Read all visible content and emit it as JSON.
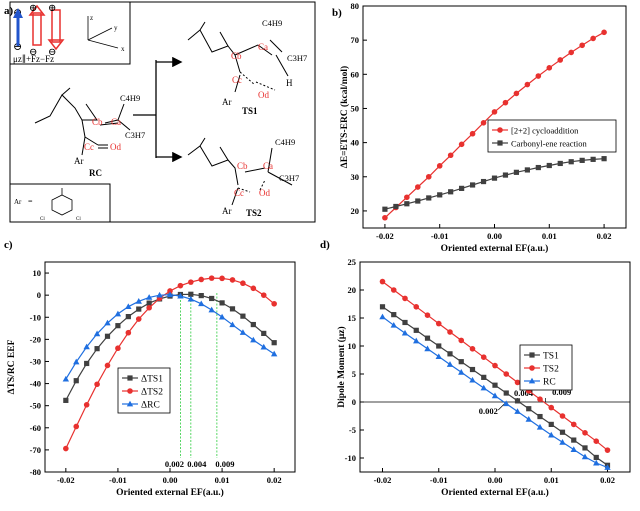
{
  "panel_labels": {
    "a": "a)",
    "b": "b)",
    "c": "c)",
    "d": "d)"
  },
  "scheme": {
    "field_labels": {
      "plus": "⊕",
      "minus": "⊖",
      "mu_expr": "μz∥+Fz−Fz",
      "axis_z": "z",
      "axis_y": "y",
      "axis_x": "x"
    },
    "rc": {
      "label": "RC",
      "c4h9": "C4H9",
      "ca": "Ca",
      "cb": "Cb",
      "cc": "Cc",
      "od": "Od",
      "ar": "Ar"
    },
    "ts1": {
      "label": "TS1",
      "c4h9": "C4H9",
      "c3h7": "C3H7",
      "ca": "Ca",
      "cb": "Cb",
      "cc": "Cc",
      "od": "Od",
      "h": "H",
      "ar": "Ar"
    },
    "ts2": {
      "label": "TS2",
      "c4h9": "C4H9",
      "c3h7": "C3H7",
      "ca": "Ca",
      "cb": "Cb",
      "cc": "Cc",
      "od": "Od",
      "ar": "Ar"
    },
    "ar_def": {
      "ar": "Ar",
      "eq": "=",
      "cl1": "Cl",
      "cl2": "Cl"
    }
  },
  "colors": {
    "red": "#e8312f",
    "dark": "#404040",
    "blue": "#1f6fe0",
    "green": "#2ecc40"
  },
  "chart_data": [
    {
      "id": "b",
      "type": "line",
      "xlabel": "Oriented external EF(a.u.)",
      "ylabel": "ΔE=ETS-ERC (kcal/mol)",
      "xlim": [
        -0.024,
        0.024
      ],
      "ylim": [
        15,
        80
      ],
      "xticks": [
        "-0.02",
        "-0.01",
        "0.00",
        "0.01",
        "0.02"
      ],
      "yticks": [
        "20",
        "30",
        "40",
        "50",
        "60",
        "70",
        "80"
      ],
      "x": [
        -0.02,
        -0.018,
        -0.016,
        -0.014,
        -0.012,
        -0.01,
        -0.008,
        -0.006,
        -0.004,
        -0.002,
        0,
        0.002,
        0.004,
        0.006,
        0.008,
        0.01,
        0.012,
        0.014,
        0.016,
        0.018,
        0.02
      ],
      "series": [
        {
          "name": "[2+2] cycloaddition",
          "color": "#e8312f",
          "marker": "circle",
          "values": [
            18,
            21,
            24,
            27,
            30,
            33.2,
            36.3,
            39.5,
            42.6,
            45.8,
            49,
            51.7,
            54.4,
            57,
            59.5,
            61.9,
            64.2,
            66.4,
            68.5,
            70.5,
            72.3
          ]
        },
        {
          "name": "Carbonyl-ene reaction",
          "color": "#404040",
          "marker": "square",
          "values": [
            20.5,
            21.3,
            22.1,
            22.9,
            23.8,
            24.7,
            25.6,
            26.6,
            27.6,
            28.6,
            29.6,
            30.5,
            31.3,
            32.0,
            32.7,
            33.3,
            33.9,
            34.4,
            34.8,
            35.1,
            35.3
          ]
        }
      ],
      "legend": "right-middle"
    },
    {
      "id": "c",
      "type": "line",
      "xlabel": "Oriented external EF(a.u.)",
      "ylabel": "ΔTS/RC EEF",
      "xlim": [
        -0.024,
        0.024
      ],
      "ylim": [
        -80,
        15
      ],
      "xticks": [
        "-0.02",
        "-0.01",
        "0.00",
        "0.01",
        "0.02"
      ],
      "yticks": [
        "-80",
        "-70",
        "-60",
        "-50",
        "-40",
        "-30",
        "-20",
        "-10",
        "0",
        "10"
      ],
      "x": [
        -0.02,
        -0.018,
        -0.016,
        -0.014,
        -0.012,
        -0.01,
        -0.008,
        -0.006,
        -0.004,
        -0.002,
        0,
        0.002,
        0.004,
        0.006,
        0.008,
        0.01,
        0.012,
        0.014,
        0.016,
        0.018,
        0.02
      ],
      "series": [
        {
          "name": "ΔTS1",
          "color": "#404040",
          "marker": "square",
          "values": [
            -47.6,
            -38.7,
            -30.9,
            -24.2,
            -18.6,
            -13.8,
            -9.7,
            -6.3,
            -3.6,
            -1.7,
            -0.4,
            0.3,
            0.4,
            -0.2,
            -1.5,
            -3.5,
            -6.2,
            -9.5,
            -13.3,
            -17.3,
            -21.5
          ]
        },
        {
          "name": "ΔTS2",
          "color": "#e8312f",
          "marker": "circle",
          "values": [
            -69.4,
            -59.4,
            -49.6,
            -40.3,
            -31.8,
            -24.0,
            -17.0,
            -10.8,
            -5.7,
            -1.4,
            1.9,
            4.3,
            5.9,
            7.1,
            7.7,
            7.6,
            6.9,
            5.4,
            3.1,
            0.0,
            -3.9
          ]
        },
        {
          "name": "ΔRC",
          "color": "#1f6fe0",
          "marker": "triangle",
          "values": [
            -38.0,
            -30.2,
            -23.4,
            -17.5,
            -12.6,
            -8.5,
            -5.2,
            -2.8,
            -1.0,
            0.0,
            0.2,
            -0.4,
            -1.8,
            -3.9,
            -6.7,
            -9.9,
            -13.4,
            -16.9,
            -20.3,
            -23.5,
            -26.6
          ]
        }
      ],
      "annotations": [
        {
          "text": "0.002",
          "x": 0.002
        },
        {
          "text": "0.004",
          "x": 0.004
        },
        {
          "text": "0.009",
          "x": 0.009
        }
      ],
      "legend": "bottom-center"
    },
    {
      "id": "d",
      "type": "line",
      "xlabel": "Oriented external EF(a.u.)",
      "ylabel": "Dipole Moment (μz)",
      "xlim": [
        -0.024,
        0.024
      ],
      "ylim": [
        -12.5,
        25
      ],
      "xticks": [
        "-0.02",
        "-0.01",
        "0.00",
        "0.01",
        "0.02"
      ],
      "yticks": [
        "-10",
        "-5",
        "0",
        "5",
        "10",
        "15",
        "20",
        "25"
      ],
      "x": [
        -0.02,
        -0.018,
        -0.016,
        -0.014,
        -0.012,
        -0.01,
        -0.008,
        -0.006,
        -0.004,
        -0.002,
        0,
        0.002,
        0.004,
        0.006,
        0.008,
        0.01,
        0.012,
        0.014,
        0.016,
        0.018,
        0.02
      ],
      "series": [
        {
          "name": "TS1",
          "color": "#404040",
          "marker": "square",
          "values": [
            17.0,
            15.6,
            14.2,
            12.8,
            11.4,
            10.0,
            8.6,
            7.2,
            5.8,
            4.4,
            3.0,
            1.6,
            0.2,
            -1.2,
            -2.6,
            -4.0,
            -5.4,
            -6.8,
            -8.2,
            -9.9,
            -11.3
          ]
        },
        {
          "name": "TS2",
          "color": "#e8312f",
          "marker": "circle",
          "values": [
            21.5,
            20.0,
            18.5,
            17.0,
            15.5,
            14.0,
            12.5,
            11.0,
            9.5,
            8.0,
            6.5,
            5.0,
            3.5,
            2.0,
            0.5,
            -1.0,
            -2.5,
            -4.0,
            -5.5,
            -7.0,
            -8.6
          ]
        },
        {
          "name": "RC",
          "color": "#1f6fe0",
          "marker": "triangle",
          "values": [
            15.2,
            13.7,
            12.3,
            10.9,
            9.5,
            8.1,
            6.7,
            5.3,
            3.9,
            2.5,
            1.1,
            -0.3,
            -1.7,
            -3.1,
            -4.5,
            -5.9,
            -7.2,
            -8.5,
            -9.8,
            -10.9,
            -11.7
          ]
        }
      ],
      "annotations": [
        {
          "text": "0.002",
          "x": 0.002
        },
        {
          "text": "0.004",
          "x": 0.004
        },
        {
          "text": "0.009",
          "x": 0.009
        }
      ],
      "legend": "right-upper"
    }
  ]
}
